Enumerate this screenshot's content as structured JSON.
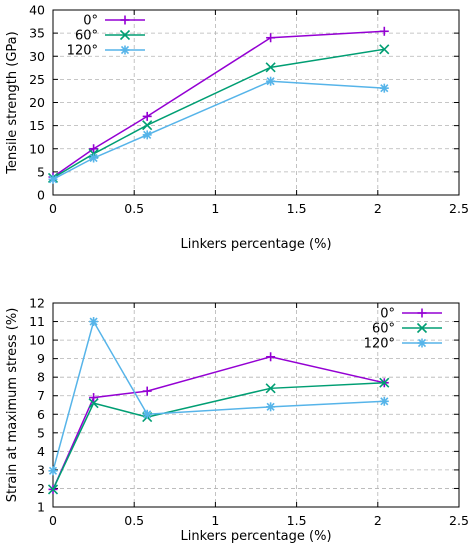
{
  "chart_data": [
    {
      "type": "line",
      "title": "",
      "xlabel": "Linkers percentage (%)",
      "ylabel": "Tensile strength (GPa)",
      "xlim": [
        0,
        2.5
      ],
      "ylim": [
        0,
        40
      ],
      "xticks": [
        0,
        0.5,
        1,
        1.5,
        2,
        2.5
      ],
      "xtick_labels": [
        "0",
        "0.5",
        "1",
        "1.5",
        "2",
        "2.5"
      ],
      "yticks": [
        0,
        5,
        10,
        15,
        20,
        25,
        30,
        35,
        40
      ],
      "ytick_labels": [
        "0",
        "5",
        "10",
        "15",
        "20",
        "25",
        "30",
        "35",
        "40"
      ],
      "grid": true,
      "legend_position": "top-left",
      "series": [
        {
          "name": "0°",
          "color": "#9400d3",
          "marker": "plus",
          "x": [
            0,
            0.25,
            0.58,
            1.34,
            2.04
          ],
          "y": [
            3.9,
            10.0,
            17.0,
            34.0,
            35.4
          ]
        },
        {
          "name": "60°",
          "color": "#009e73",
          "marker": "cross",
          "x": [
            0,
            0.25,
            0.58,
            1.34,
            2.04
          ],
          "y": [
            3.7,
            8.9,
            15.1,
            27.6,
            31.5
          ]
        },
        {
          "name": "120°",
          "color": "#56b4e9",
          "marker": "star",
          "x": [
            0,
            0.25,
            0.58,
            1.34,
            2.04
          ],
          "y": [
            3.4,
            8.0,
            13.0,
            24.6,
            23.1
          ]
        }
      ]
    },
    {
      "type": "line",
      "title": "",
      "xlabel": "Linkers percentage (%)",
      "ylabel": "Strain at maximum stress (%)",
      "xlim": [
        0,
        2.5
      ],
      "ylim": [
        1,
        12
      ],
      "xticks": [
        0,
        0.5,
        1,
        1.5,
        2,
        2.5
      ],
      "xtick_labels": [
        "0",
        "0.5",
        "1",
        "1.5",
        "2",
        "2.5"
      ],
      "yticks": [
        1,
        2,
        3,
        4,
        5,
        6,
        7,
        8,
        9,
        10,
        11,
        12
      ],
      "ytick_labels": [
        "1",
        "2",
        "3",
        "4",
        "5",
        "6",
        "7",
        "8",
        "9",
        "10",
        "11",
        "12"
      ],
      "grid": true,
      "legend_position": "top-right",
      "series": [
        {
          "name": "0°",
          "color": "#9400d3",
          "marker": "plus",
          "x": [
            0,
            0.25,
            0.58,
            1.34,
            2.04
          ],
          "y": [
            1.95,
            6.9,
            7.25,
            9.1,
            7.7
          ]
        },
        {
          "name": "60°",
          "color": "#009e73",
          "marker": "cross",
          "x": [
            0,
            0.25,
            0.58,
            1.34,
            2.04
          ],
          "y": [
            1.95,
            6.6,
            5.85,
            7.4,
            7.7
          ]
        },
        {
          "name": "120°",
          "color": "#56b4e9",
          "marker": "star",
          "x": [
            0,
            0.25,
            0.58,
            1.34,
            2.04
          ],
          "y": [
            2.95,
            11.0,
            6.0,
            6.4,
            6.7
          ]
        }
      ]
    }
  ]
}
